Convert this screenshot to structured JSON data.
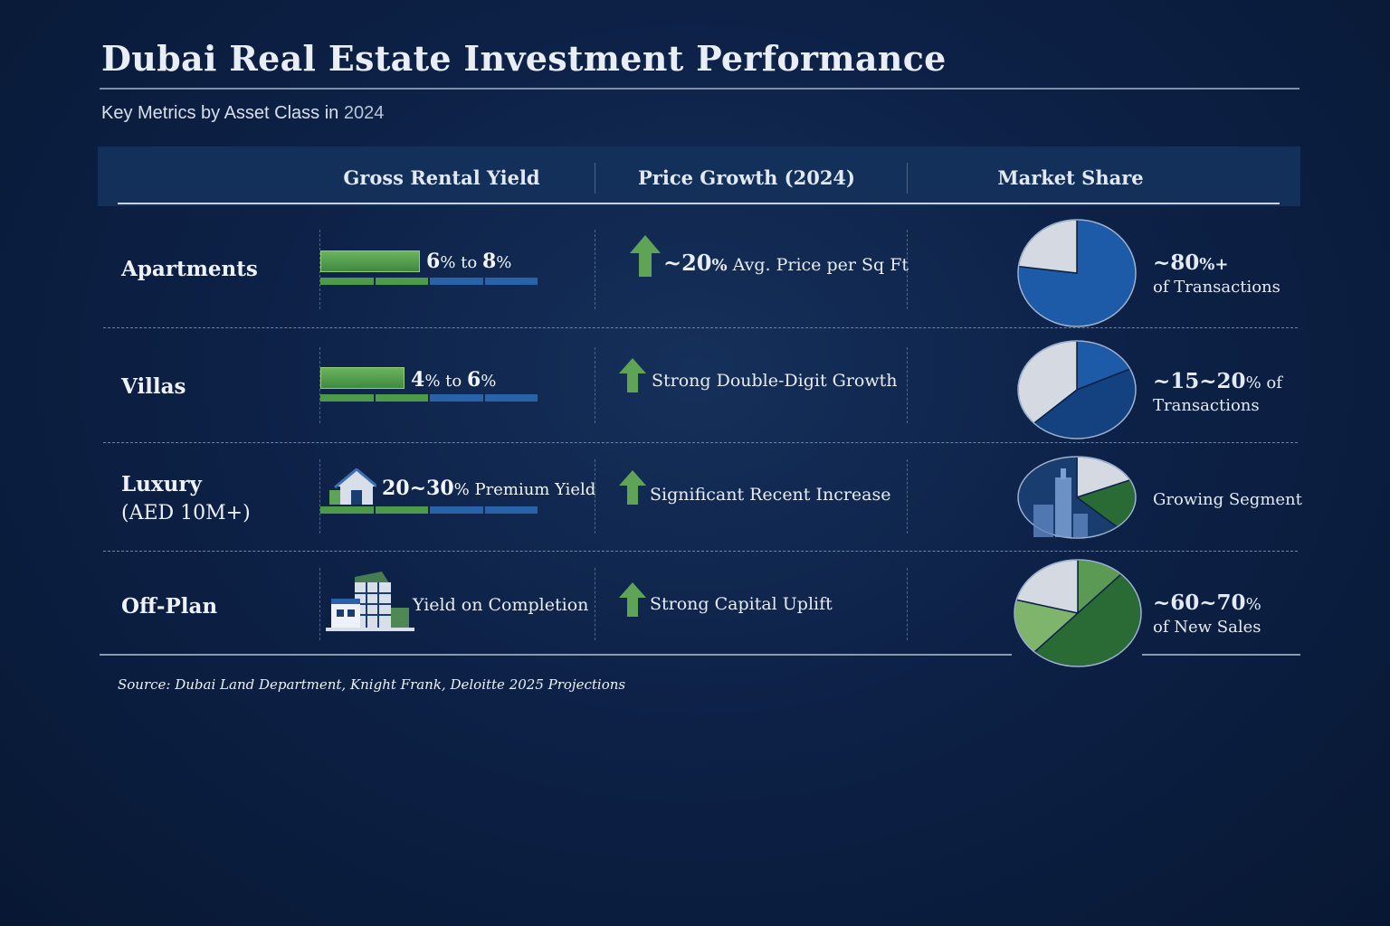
{
  "title": "Dubai Real Estate Investment Performance",
  "subtitle_main": "Key Metrics by Asset Class in",
  "subtitle_year": "2024",
  "columns": {
    "yield": "Gross Rental Yield",
    "growth": "Price Growth (2024)",
    "share": "Market Share"
  },
  "source": "Source: Dubai Land Department, Knight Frank, Deloitte 2025 Projections",
  "colors": {
    "background": "#0d2147",
    "header_band": "#13305a",
    "yield_green": "#4f9a4a",
    "arrow_green": "#5fa357",
    "pie_blue": "#1d5aa8",
    "pie_green_dark": "#2a6b35",
    "pie_green_light": "#7fb46c",
    "pie_gray": "#d5dae2"
  },
  "rows": [
    {
      "asset": "Apartments",
      "asset_sub": "",
      "yield_main": "6",
      "yield_pct1": "%",
      "yield_to": " to ",
      "yield_hi": "8",
      "yield_pct2": "%",
      "yield_icon": "",
      "growth_main": "~20",
      "growth_pct": "%",
      "growth_text": " Avg. Price per Sq Ft",
      "share_main": "~80",
      "share_suffix": "%+",
      "share_line2": "of Transactions"
    },
    {
      "asset": "Villas",
      "asset_sub": "",
      "yield_main": "4",
      "yield_pct1": "%",
      "yield_to": " to ",
      "yield_hi": "6",
      "yield_pct2": "%",
      "yield_icon": "",
      "growth_main": "",
      "growth_pct": "",
      "growth_text": "Strong Double-Digit Growth",
      "share_main": "~15~20",
      "share_suffix": "% of",
      "share_line2": "Transactions"
    },
    {
      "asset": "Luxury",
      "asset_sub": "(AED 10M+)",
      "yield_main": "20~30",
      "yield_pct1": "%",
      "yield_to": " Premium Yield",
      "yield_hi": "",
      "yield_pct2": "",
      "yield_icon": "house-icon",
      "growth_main": "",
      "growth_pct": "",
      "growth_text": "Significant Recent Increase",
      "share_main": "",
      "share_suffix": "Growing Segment",
      "share_line2": ""
    },
    {
      "asset": "Off-Plan",
      "asset_sub": "",
      "yield_main": "",
      "yield_pct1": "",
      "yield_to": "Yield on Completion",
      "yield_hi": "",
      "yield_pct2": "",
      "yield_icon": "building-icon",
      "growth_main": "",
      "growth_pct": "",
      "growth_text": "Strong Capital Uplift",
      "share_main": "~60~70",
      "share_suffix": "%",
      "share_line2": "of New Sales"
    }
  ],
  "chart_data": {
    "type": "table",
    "title": "Dubai Real Estate Investment Performance",
    "columns": [
      "Gross Rental Yield",
      "Price Growth (2024)",
      "Market Share"
    ],
    "rows": [
      {
        "asset": "Apartments",
        "yield_range_pct": [
          6,
          8
        ],
        "price_growth": "~20% Avg. Price per Sq Ft",
        "market_share_pct": 80
      },
      {
        "asset": "Villas",
        "yield_range_pct": [
          4,
          6
        ],
        "price_growth": "Strong Double-Digit Growth",
        "market_share_pct": [
          15,
          20
        ]
      },
      {
        "asset": "Luxury (AED 10M+)",
        "yield_range_pct": [
          20,
          30
        ],
        "price_growth": "Significant Recent Increase",
        "market_share_pct": null
      },
      {
        "asset": "Off-Plan",
        "yield_range_pct": null,
        "price_growth": "Strong Capital Uplift",
        "market_share_pct": [
          60,
          70
        ]
      }
    ],
    "yield_bar_fill": [
      0.45,
      0.38,
      0,
      0
    ],
    "pies": [
      {
        "segments": [
          {
            "value": 77,
            "color": "#1d5aa8"
          },
          {
            "value": 23,
            "color": "#d5dae2"
          }
        ]
      },
      {
        "segments": [
          {
            "value": 18,
            "color": "#1d5aa8"
          },
          {
            "value": 45,
            "color": "#14417f"
          },
          {
            "value": 37,
            "color": "#d5dae2"
          }
        ]
      },
      {
        "segments": [
          {
            "value": 18,
            "color": "#d5dae2"
          },
          {
            "value": 20,
            "color": "#2a6b35"
          },
          {
            "value": 62,
            "color": "#1a3d70"
          }
        ]
      },
      {
        "segments": [
          {
            "value": 12,
            "color": "#5b9a55"
          },
          {
            "value": 50,
            "color": "#2a6b35"
          },
          {
            "value": 17,
            "color": "#7fb46c"
          },
          {
            "value": 21,
            "color": "#d5dae2"
          }
        ]
      }
    ]
  }
}
